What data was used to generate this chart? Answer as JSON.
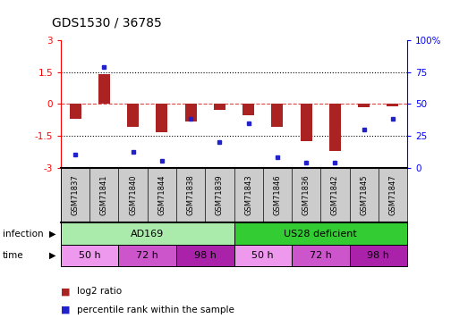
{
  "title": "GDS1530 / 36785",
  "samples": [
    "GSM71837",
    "GSM71841",
    "GSM71840",
    "GSM71844",
    "GSM71838",
    "GSM71839",
    "GSM71843",
    "GSM71846",
    "GSM71836",
    "GSM71842",
    "GSM71845",
    "GSM71847"
  ],
  "log2_ratio": [
    -0.7,
    1.4,
    -1.1,
    -1.35,
    -0.85,
    -0.3,
    -0.55,
    -1.1,
    -1.75,
    -2.2,
    -0.15,
    -0.1
  ],
  "percentile_rank": [
    10,
    79,
    12,
    5,
    38,
    20,
    35,
    8,
    4,
    4,
    30,
    38
  ],
  "ylim_left": [
    -3,
    3
  ],
  "ylim_right": [
    0,
    100
  ],
  "yticks_left": [
    -3,
    -1.5,
    0,
    1.5,
    3
  ],
  "yticks_right": [
    0,
    25,
    50,
    75,
    100
  ],
  "infection_groups": [
    {
      "label": "AD169",
      "start": 0,
      "end": 6,
      "color": "#AAEAAA"
    },
    {
      "label": "US28 deficient",
      "start": 6,
      "end": 12,
      "color": "#33CC33"
    }
  ],
  "time_groups": [
    {
      "label": "50 h",
      "start": 0,
      "end": 2,
      "color": "#EE99EE"
    },
    {
      "label": "72 h",
      "start": 2,
      "end": 4,
      "color": "#CC55CC"
    },
    {
      "label": "98 h",
      "start": 4,
      "end": 6,
      "color": "#AA22AA"
    },
    {
      "label": "50 h",
      "start": 6,
      "end": 8,
      "color": "#EE99EE"
    },
    {
      "label": "72 h",
      "start": 8,
      "end": 10,
      "color": "#CC55CC"
    },
    {
      "label": "98 h",
      "start": 10,
      "end": 12,
      "color": "#AA22AA"
    }
  ],
  "bar_color": "#AA2222",
  "point_color": "#2222CC",
  "zero_line_color": "#CC4444",
  "grid_color": "#000000",
  "bg_color": "#FFFFFF",
  "sample_bg": "#CCCCCC"
}
